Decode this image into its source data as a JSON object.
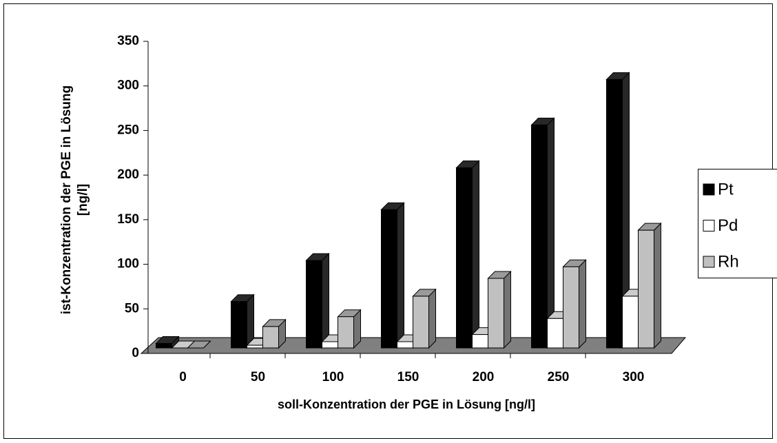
{
  "chart_data": {
    "type": "bar3d",
    "x_label": "soll-Konzentration der PGE in Lösung [ng/l]",
    "y_label": "ist-Konzentration der PGE in Lösung [ng/l]",
    "categories": [
      "0",
      "50",
      "100",
      "150",
      "200",
      "250",
      "300"
    ],
    "series": [
      {
        "name": "Pt",
        "color": "#000000",
        "values": [
          5,
          52,
          98,
          155,
          202,
          250,
          301
        ]
      },
      {
        "name": "Pd",
        "color": "#ffffff",
        "values": [
          0,
          3,
          7,
          7,
          15,
          33,
          58
        ]
      },
      {
        "name": "Rh",
        "color": "#c0c0c0",
        "values": [
          0,
          24,
          35,
          58,
          78,
          91,
          132
        ]
      }
    ],
    "ylim": [
      0,
      350
    ],
    "yticks": [
      0,
      50,
      100,
      150,
      200,
      250,
      300,
      350
    ],
    "legend": "right"
  }
}
